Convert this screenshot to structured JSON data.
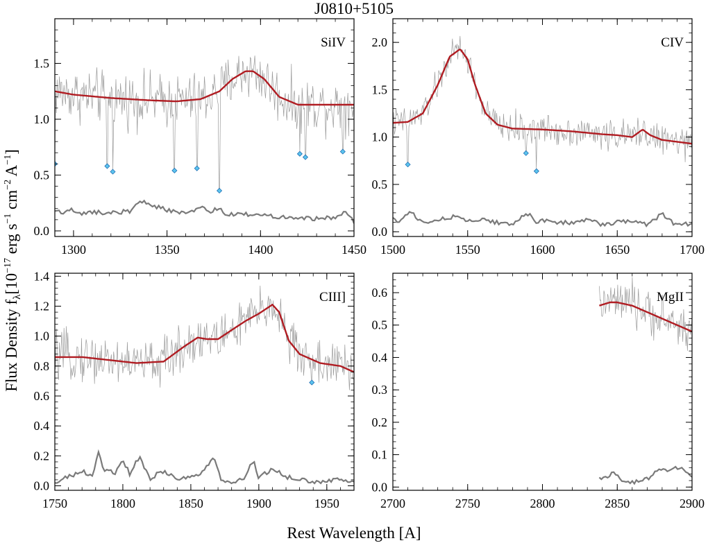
{
  "figure": {
    "title": "J0810+5105",
    "ylabel": "Flux Density f",
    "ylabel_sub": "λ",
    "ylabel_units_pre": "[10",
    "ylabel_exp1": "−17",
    "ylabel_mid1": " erg s",
    "ylabel_exp2": "−1",
    "ylabel_mid2": " cm",
    "ylabel_exp3": "−2",
    "ylabel_mid3": " A",
    "ylabel_exp4": "−1",
    "ylabel_end": "]",
    "xlabel": "Rest Wavelength [A]"
  },
  "colors": {
    "spectrum": "#9a9a9a",
    "fit": "#b01c22",
    "error": "#7a7a7a",
    "marker_fill": "#5cc4ee",
    "marker_edge": "#1f6fb4"
  },
  "chart_data": [
    {
      "type": "line",
      "panel": "SiIV",
      "label": "SiIV",
      "xlim": [
        1290,
        1450
      ],
      "ylim": [
        -0.05,
        1.9
      ],
      "xticks": [
        1300,
        1350,
        1400,
        1450
      ],
      "yticks": [
        0.0,
        0.5,
        1.0,
        1.5
      ],
      "xtick_labels": [
        "1300",
        "1350",
        "1400",
        "1450"
      ],
      "ytick_labels": [
        "0.0",
        "0.5",
        "1.0",
        "1.5"
      ],
      "fit": {
        "x": [
          1290,
          1300,
          1320,
          1340,
          1355,
          1368,
          1378,
          1385,
          1392,
          1396,
          1402,
          1410,
          1420,
          1430,
          1450
        ],
        "y": [
          1.25,
          1.22,
          1.19,
          1.17,
          1.16,
          1.18,
          1.25,
          1.36,
          1.43,
          1.43,
          1.36,
          1.2,
          1.13,
          1.13,
          1.13
        ]
      },
      "error": {
        "x": [
          1290,
          1295,
          1298,
          1302,
          1310,
          1320,
          1330,
          1337,
          1340,
          1350,
          1360,
          1368,
          1372,
          1378,
          1382,
          1390,
          1400,
          1410,
          1420,
          1430,
          1440,
          1445,
          1450
        ],
        "y": [
          0.18,
          0.16,
          0.2,
          0.15,
          0.17,
          0.16,
          0.18,
          0.27,
          0.24,
          0.19,
          0.15,
          0.22,
          0.17,
          0.2,
          0.14,
          0.15,
          0.14,
          0.13,
          0.12,
          0.11,
          0.12,
          0.17,
          0.08
        ]
      },
      "spectrum_noise": 0.18,
      "absorbers": {
        "x": [
          1290,
          1318,
          1321,
          1354,
          1366,
          1378,
          1421,
          1424,
          1444
        ],
        "y": [
          0.6,
          0.58,
          0.53,
          0.54,
          0.56,
          0.36,
          0.69,
          0.66,
          0.71
        ]
      }
    },
    {
      "type": "line",
      "panel": "CIV",
      "label": "CIV",
      "xlim": [
        1500,
        1700
      ],
      "ylim": [
        -0.05,
        2.25
      ],
      "xticks": [
        1500,
        1550,
        1600,
        1650,
        1700
      ],
      "yticks": [
        0.0,
        0.5,
        1.0,
        1.5,
        2.0
      ],
      "xtick_labels": [
        "1500",
        "1550",
        "1600",
        "1650",
        "1700"
      ],
      "ytick_labels": [
        "0.0",
        "0.5",
        "1.0",
        "1.5",
        "2.0"
      ],
      "fit": {
        "x": [
          1500,
          1510,
          1520,
          1530,
          1538,
          1545,
          1550,
          1555,
          1562,
          1570,
          1580,
          1600,
          1620,
          1640,
          1650,
          1660,
          1667,
          1672,
          1680,
          1700
        ],
        "y": [
          1.15,
          1.16,
          1.25,
          1.55,
          1.85,
          1.93,
          1.82,
          1.55,
          1.25,
          1.13,
          1.09,
          1.08,
          1.06,
          1.03,
          1.02,
          1.0,
          1.08,
          1.02,
          0.97,
          0.93
        ]
      },
      "error": {
        "x": [
          1500,
          1505,
          1512,
          1520,
          1530,
          1540,
          1550,
          1560,
          1570,
          1580,
          1592,
          1595,
          1600,
          1610,
          1620,
          1630,
          1640,
          1650,
          1660,
          1670,
          1680,
          1690,
          1700
        ],
        "y": [
          0.15,
          0.1,
          0.22,
          0.09,
          0.13,
          0.16,
          0.11,
          0.12,
          0.1,
          0.09,
          0.21,
          0.1,
          0.12,
          0.1,
          0.09,
          0.13,
          0.07,
          0.1,
          0.12,
          0.08,
          0.19,
          0.06,
          0.09
        ]
      },
      "spectrum_noise": 0.12,
      "absorbers": {
        "x": [
          1510,
          1589,
          1596
        ],
        "y": [
          0.71,
          0.83,
          0.64
        ]
      }
    },
    {
      "type": "line",
      "panel": "CIII]",
      "label": "CIII]",
      "xlim": [
        1750,
        1970
      ],
      "ylim": [
        -0.03,
        1.42
      ],
      "xticks": [
        1750,
        1800,
        1850,
        1900,
        1950
      ],
      "yticks": [
        0.0,
        0.2,
        0.4,
        0.6,
        0.8,
        1.0,
        1.2,
        1.4
      ],
      "xtick_labels": [
        "1750",
        "1800",
        "1850",
        "1900",
        "1950"
      ],
      "ytick_labels": [
        "0.0",
        "0.2",
        "0.4",
        "0.6",
        "0.8",
        "1.0",
        "1.2",
        "1.4"
      ],
      "fit": {
        "x": [
          1750,
          1770,
          1790,
          1810,
          1830,
          1845,
          1855,
          1862,
          1870,
          1880,
          1890,
          1900,
          1910,
          1915,
          1922,
          1930,
          1945,
          1960,
          1970
        ],
        "y": [
          0.86,
          0.86,
          0.84,
          0.82,
          0.83,
          0.93,
          0.99,
          0.98,
          0.98,
          1.04,
          1.1,
          1.15,
          1.21,
          1.16,
          0.97,
          0.88,
          0.82,
          0.8,
          0.76
        ]
      },
      "error": {
        "x": [
          1750,
          1760,
          1770,
          1778,
          1782,
          1786,
          1795,
          1800,
          1805,
          1812,
          1820,
          1830,
          1840,
          1850,
          1860,
          1866,
          1872,
          1880,
          1890,
          1896,
          1900,
          1910,
          1920,
          1930,
          1940,
          1950,
          1960,
          1970
        ],
        "y": [
          0.02,
          0.06,
          0.1,
          0.06,
          0.22,
          0.1,
          0.09,
          0.17,
          0.08,
          0.19,
          0.05,
          0.1,
          0.04,
          0.06,
          0.1,
          0.2,
          0.05,
          0.02,
          0.06,
          0.18,
          0.05,
          0.12,
          0.06,
          0.05,
          0.02,
          0.03,
          0.04,
          0.02
        ]
      },
      "spectrum_noise": 0.12,
      "absorbers": {
        "x": [
          1939
        ],
        "y": [
          0.69
        ]
      }
    },
    {
      "type": "line",
      "panel": "MgII",
      "label": "MgII",
      "xlim": [
        2700,
        2900
      ],
      "ylim": [
        -0.01,
        0.66
      ],
      "xticks": [
        2700,
        2750,
        2800,
        2850,
        2900
      ],
      "yticks": [
        0.0,
        0.1,
        0.2,
        0.3,
        0.4,
        0.5,
        0.6
      ],
      "xtick_labels": [
        "2700",
        "2750",
        "2800",
        "2850",
        "2900"
      ],
      "ytick_labels": [
        "0.0",
        "0.1",
        "0.2",
        "0.3",
        "0.4",
        "0.5",
        "0.6"
      ],
      "fit": {
        "x": [
          2838,
          2845,
          2850,
          2860,
          2870,
          2880,
          2890,
          2900
        ],
        "y": [
          0.56,
          0.57,
          0.57,
          0.56,
          0.54,
          0.52,
          0.5,
          0.48
        ]
      },
      "error": {
        "x": [
          2838,
          2843,
          2848,
          2852,
          2858,
          2865,
          2872,
          2878,
          2884,
          2890,
          2896,
          2900
        ],
        "y": [
          0.03,
          0.03,
          0.05,
          0.02,
          0.01,
          0.02,
          0.03,
          0.06,
          0.05,
          0.06,
          0.05,
          0.03
        ]
      },
      "spectrum_noise": 0.05,
      "absorbers": {
        "x": [],
        "y": []
      }
    }
  ]
}
